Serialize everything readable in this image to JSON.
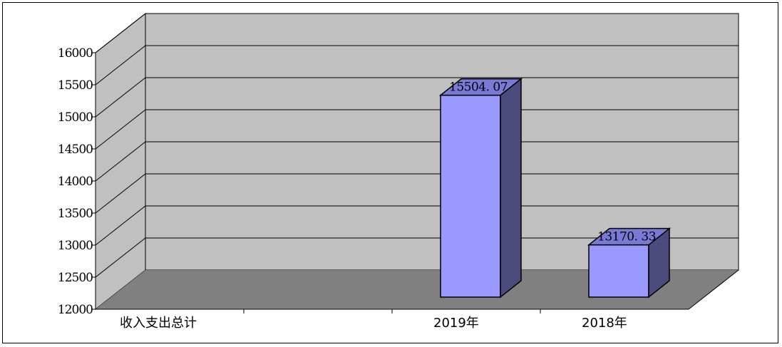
{
  "chart_data": {
    "type": "bar",
    "style": "3d",
    "categories": [
      "收入支出总计",
      "2019年",
      "2018年"
    ],
    "values": [
      null,
      15504.07,
      13170.33
    ],
    "data_labels": [
      "",
      "15504. 07",
      "13170. 33"
    ],
    "ylim": [
      12000,
      16000
    ],
    "yticks": [
      12000,
      12500,
      13000,
      13500,
      14000,
      14500,
      15000,
      15500,
      16000
    ],
    "ytick_labels": [
      "12000",
      "12500",
      "13000",
      "13500",
      "14000",
      "14500",
      "15000",
      "15500",
      "16000"
    ],
    "grid": true,
    "legend": "none",
    "colors": {
      "bar_front": "#9999ff",
      "bar_side": "#4b4b7d",
      "bar_top": "#7a7ad6",
      "back_wall": "#c0c0c0",
      "side_wall": "#c0c0c0",
      "floor": "#808080"
    }
  }
}
